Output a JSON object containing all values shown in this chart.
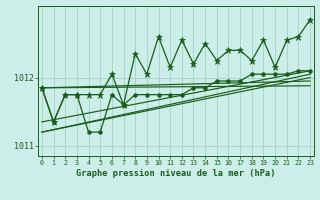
{
  "title": "Graphe pression niveau de la mer (hPa)",
  "background_color": "#cceee8",
  "grid_color": "#aad4ce",
  "line_color": "#1a5c1a",
  "hours": [
    0,
    1,
    2,
    3,
    4,
    5,
    6,
    7,
    8,
    9,
    10,
    11,
    12,
    13,
    14,
    15,
    16,
    17,
    18,
    19,
    20,
    21,
    22,
    23
  ],
  "pressure_main": [
    1011.85,
    1011.35,
    1011.75,
    1011.75,
    1011.75,
    1011.75,
    1012.05,
    1011.6,
    1012.35,
    1012.05,
    1012.6,
    1012.15,
    1012.55,
    1012.2,
    1012.5,
    1012.25,
    1012.4,
    1012.4,
    1012.25,
    1012.55,
    1012.15,
    1012.55,
    1012.6,
    1012.85
  ],
  "pressure_lower": [
    1011.85,
    1011.35,
    1011.75,
    1011.75,
    1011.2,
    1011.2,
    1011.75,
    1011.6,
    1011.75,
    1011.75,
    1011.75,
    1011.75,
    1011.75,
    1011.85,
    1011.85,
    1011.95,
    1011.95,
    1011.95,
    1012.05,
    1012.05,
    1012.05,
    1012.05,
    1012.1,
    1012.1
  ],
  "trend_lines": [
    [
      1011.85,
      1011.85
    ],
    [
      1011.35,
      1012.1
    ],
    [
      1011.2,
      1012.05
    ],
    [
      1011.2,
      1012.0
    ]
  ],
  "ylim": [
    1010.85,
    1013.05
  ],
  "yticks": [
    1011,
    1012
  ],
  "xlim": [
    -0.3,
    23.3
  ]
}
